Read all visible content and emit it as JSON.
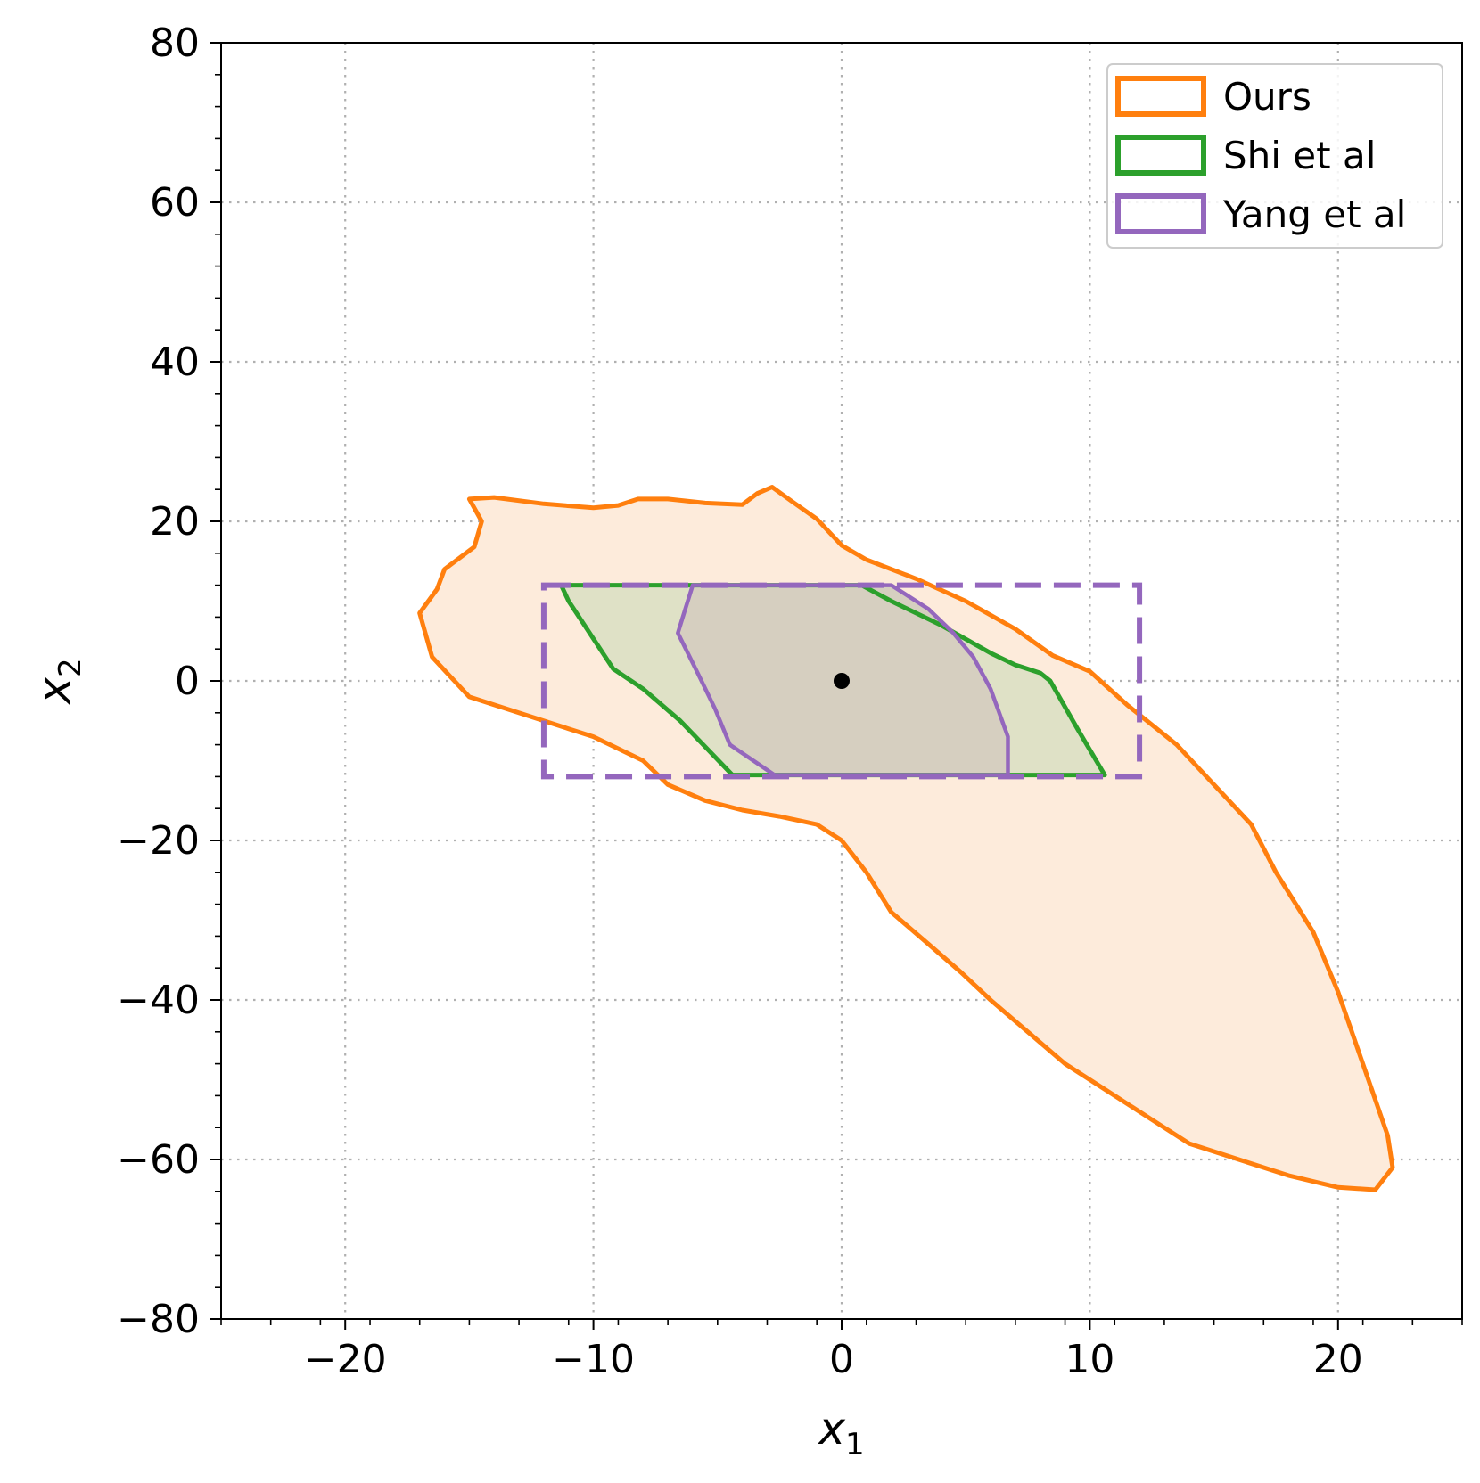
{
  "chart_data": {
    "type": "area",
    "title": "",
    "xlabel": "x",
    "xlabel_subscript": "1",
    "ylabel": "x",
    "ylabel_subscript": "2",
    "xlim": [
      -25,
      25
    ],
    "ylim": [
      -80,
      80
    ],
    "x_ticks": [
      -20,
      -10,
      0,
      10,
      20
    ],
    "x_tick_labels": [
      "−20",
      "−10",
      "0",
      "10",
      "20"
    ],
    "y_ticks": [
      -80,
      -60,
      -40,
      -20,
      0,
      20,
      40,
      60,
      80
    ],
    "y_tick_labels": [
      "−80",
      "−60",
      "−40",
      "−20",
      "0",
      "20",
      "40",
      "60",
      "80"
    ],
    "grid": true,
    "grid_style": "dotted",
    "legend_position": "top-right",
    "legend": [
      {
        "label": "Ours",
        "color": "#ff7f0e"
      },
      {
        "label": "Shi et al",
        "color": "#2ca02c"
      },
      {
        "label": "Yang et al",
        "color": "#9467bd"
      }
    ],
    "colors": {
      "ours": "#ff7f0e",
      "ours_fill": "#fdebdb",
      "shi": "#2ca02c",
      "shi_fill": "#dfe1c6",
      "yang": "#9467bd",
      "yang_fill": "#d6cfc0",
      "box": "#9467bd",
      "point": "#000000"
    },
    "series": [
      {
        "name": "Ours",
        "points": [
          [
            -15.0,
            22.8
          ],
          [
            -14.0,
            23.0
          ],
          [
            -12.0,
            22.2
          ],
          [
            -10.0,
            21.7
          ],
          [
            -9.0,
            22.0
          ],
          [
            -8.2,
            22.8
          ],
          [
            -7.0,
            22.8
          ],
          [
            -5.5,
            22.3
          ],
          [
            -4.0,
            22.1
          ],
          [
            -3.4,
            23.5
          ],
          [
            -2.8,
            24.3
          ],
          [
            -2.0,
            22.5
          ],
          [
            -1.0,
            20.3
          ],
          [
            0.0,
            17.0
          ],
          [
            1.0,
            15.2
          ],
          [
            3.0,
            12.8
          ],
          [
            5.0,
            10.0
          ],
          [
            7.0,
            6.5
          ],
          [
            8.5,
            3.2
          ],
          [
            10.0,
            1.2
          ],
          [
            11.5,
            -3.0
          ],
          [
            13.5,
            -8.0
          ],
          [
            15.0,
            -13.0
          ],
          [
            16.5,
            -18.0
          ],
          [
            17.5,
            -24.0
          ],
          [
            19.0,
            -31.5
          ],
          [
            20.0,
            -39.0
          ],
          [
            21.0,
            -48.0
          ],
          [
            22.0,
            -57.0
          ],
          [
            22.2,
            -61.0
          ],
          [
            21.5,
            -63.8
          ],
          [
            20.0,
            -63.5
          ],
          [
            18.0,
            -62.0
          ],
          [
            16.0,
            -60.0
          ],
          [
            14.0,
            -58.0
          ],
          [
            12.5,
            -55.0
          ],
          [
            11.0,
            -52.0
          ],
          [
            9.0,
            -48.0
          ],
          [
            7.5,
            -44.0
          ],
          [
            6.0,
            -40.0
          ],
          [
            4.8,
            -36.5
          ],
          [
            3.5,
            -33.0
          ],
          [
            2.0,
            -29.0
          ],
          [
            1.0,
            -24.0
          ],
          [
            0.0,
            -20.0
          ],
          [
            -1.0,
            -18.0
          ],
          [
            -2.5,
            -17.0
          ],
          [
            -4.0,
            -16.2
          ],
          [
            -5.5,
            -15.0
          ],
          [
            -7.0,
            -13.0
          ],
          [
            -8.0,
            -10.0
          ],
          [
            -10.0,
            -7.0
          ],
          [
            -12.0,
            -5.0
          ],
          [
            -15.0,
            -2.0
          ],
          [
            -16.5,
            3.0
          ],
          [
            -17.0,
            8.5
          ],
          [
            -16.3,
            11.5
          ],
          [
            -16.0,
            14.0
          ],
          [
            -14.8,
            16.8
          ],
          [
            -14.5,
            20.0
          ],
          [
            -15.0,
            22.8
          ]
        ]
      },
      {
        "name": "Shi et al",
        "points": [
          [
            -11.3,
            12.0
          ],
          [
            0.8,
            12.0
          ],
          [
            2.0,
            10.0
          ],
          [
            4.0,
            7.0
          ],
          [
            6.0,
            3.5
          ],
          [
            7.0,
            2.0
          ],
          [
            8.0,
            1.0
          ],
          [
            8.4,
            0.0
          ],
          [
            9.5,
            -6.0
          ],
          [
            10.6,
            -11.8
          ],
          [
            -4.4,
            -11.8
          ],
          [
            -6.5,
            -5.0
          ],
          [
            -8.0,
            -1.0
          ],
          [
            -9.2,
            1.5
          ],
          [
            -11.0,
            10.0
          ],
          [
            -11.3,
            12.0
          ]
        ]
      },
      {
        "name": "Yang et al",
        "points": [
          [
            -6.0,
            12.0
          ],
          [
            2.0,
            12.0
          ],
          [
            3.5,
            9.0
          ],
          [
            4.5,
            6.0
          ],
          [
            5.3,
            3.0
          ],
          [
            6.0,
            -1.0
          ],
          [
            6.7,
            -7.0
          ],
          [
            6.7,
            -11.8
          ],
          [
            -2.7,
            -11.8
          ],
          [
            -4.5,
            -8.0
          ],
          [
            -5.1,
            -3.5
          ],
          [
            -5.8,
            1.0
          ],
          [
            -6.6,
            6.0
          ],
          [
            -6.3,
            9.0
          ],
          [
            -6.0,
            12.0
          ]
        ]
      }
    ],
    "box": {
      "x": [
        -12.0,
        12.0
      ],
      "y": [
        -12.0,
        12.0
      ],
      "style": "dashed"
    },
    "point": {
      "x": 0,
      "y": 0
    }
  }
}
